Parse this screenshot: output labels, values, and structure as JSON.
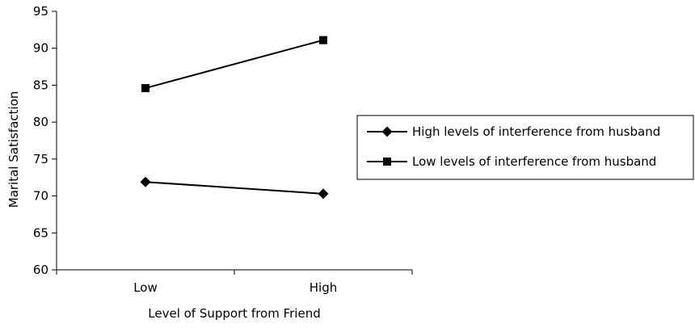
{
  "chart_data": {
    "type": "line",
    "categories": [
      "Low",
      "High"
    ],
    "series": [
      {
        "name": "High levels of interference from husband",
        "marker": "diamond",
        "values": [
          71.9,
          70.3
        ]
      },
      {
        "name": "Low levels of interference from husband",
        "marker": "square",
        "values": [
          84.6,
          91.1
        ]
      }
    ],
    "xlabel": "Level of Support from Friend",
    "ylabel": "Marital Satisfaction",
    "ylim": [
      60,
      95
    ],
    "yticks": [
      60,
      65,
      70,
      75,
      80,
      85,
      90,
      95
    ],
    "grid": false,
    "legend_position": "right",
    "colors": {
      "line": "#000000",
      "axis": "#000000"
    }
  }
}
